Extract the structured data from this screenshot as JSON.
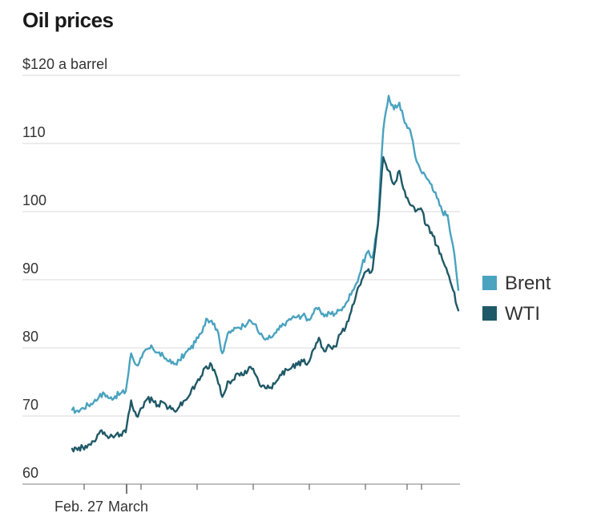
{
  "chart_data": {
    "type": "line",
    "title": "Oil prices",
    "ylabel": "$120 a barrel",
    "ylim": [
      60,
      120
    ],
    "y_ticks": [
      60,
      70,
      80,
      90,
      100,
      110,
      120
    ],
    "y_tick_labels": [
      "60",
      "70",
      "80",
      "90",
      "100",
      "110",
      "$120 a barrel"
    ],
    "x_tick_labels": [
      "Feb. 27",
      "March"
    ],
    "grid": true,
    "legend_position": "right",
    "series": [
      {
        "name": "Brent",
        "color": "#4aa3bf",
        "x": [
          0,
          0.5,
          1,
          1.5,
          2,
          2.5,
          3,
          3.5,
          4,
          4.5,
          5,
          5.5,
          6,
          6.5,
          7,
          7.5,
          8,
          8.5,
          9,
          9.5,
          10,
          10.5,
          11,
          11.5,
          12,
          12.5,
          13,
          13.5,
          14,
          14.5,
          15,
          15.5,
          16,
          16.5,
          17,
          17.5,
          18,
          18.5,
          19,
          19.5,
          20,
          20.5,
          21,
          21.5,
          22,
          22.5,
          23,
          23.5,
          24,
          24.5,
          25,
          25.5,
          26,
          26.5,
          27,
          27.5,
          28,
          28.5,
          29,
          29.5,
          30
        ],
        "values": [
          70.9,
          70.8,
          71.2,
          71.6,
          72.0,
          72.8,
          73.3,
          72.6,
          72.9,
          73.3,
          73.6,
          79.2,
          77.5,
          78.6,
          79.8,
          80.0,
          79.3,
          78.8,
          78.0,
          77.6,
          78.2,
          79.1,
          79.8,
          80.8,
          82.1,
          84.3,
          84.0,
          82.7,
          79.2,
          82.1,
          82.5,
          83.0,
          83.3,
          84.1,
          83.5,
          82.0,
          81.2,
          81.5,
          82.2,
          83.1,
          83.9,
          84.4,
          84.6,
          84.8,
          84.2,
          85.1,
          85.9,
          84.6,
          85.1,
          85.0,
          85.6,
          86.5,
          87.8,
          89.5,
          92.0,
          94.0,
          93.3,
          98.2,
          112.0,
          117.0,
          115.0
        ]
      },
      {
        "name": "WTI",
        "color": "#1f5967",
        "x": [
          0,
          0.5,
          1,
          1.5,
          2,
          2.5,
          3,
          3.5,
          4,
          4.5,
          5,
          5.5,
          6,
          6.5,
          7,
          7.5,
          8,
          8.5,
          9,
          9.5,
          10,
          10.5,
          11,
          11.5,
          12,
          12.5,
          13,
          13.5,
          14,
          14.5,
          15,
          15.5,
          16,
          16.5,
          17,
          17.5,
          18,
          18.5,
          19,
          19.5,
          20,
          20.5,
          21,
          21.5,
          22,
          22.5,
          23,
          23.5,
          24,
          24.5,
          25,
          25.5,
          26,
          26.5,
          27,
          27.5,
          28,
          28.5,
          29,
          29.5,
          30
        ],
        "values": [
          65.2,
          65.0,
          65.4,
          65.8,
          66.3,
          67.4,
          67.6,
          66.9,
          67.1,
          67.3,
          67.6,
          72.3,
          70.0,
          71.2,
          72.5,
          72.3,
          71.6,
          72.0,
          71.2,
          70.8,
          71.4,
          72.3,
          73.2,
          74.6,
          75.8,
          77.3,
          77.5,
          75.6,
          72.8,
          75.1,
          75.3,
          76.2,
          76.0,
          77.2,
          76.3,
          74.5,
          74.1,
          74.2,
          75.0,
          76.0,
          76.8,
          77.2,
          77.5,
          78.0,
          77.8,
          79.8,
          81.5,
          79.5,
          80.3,
          80.2,
          82.0,
          83.0,
          85.3,
          88.0,
          90.0,
          91.3,
          91.5,
          98.0,
          108.0,
          106.0,
          104.0
        ]
      }
    ],
    "tail_series": {
      "Brent": {
        "x": [
          30,
          30.5,
          31,
          31.5,
          32,
          32.5,
          33,
          33.5,
          34,
          34.5,
          35,
          35.5,
          36
        ],
        "values": [
          115,
          116,
          113,
          112,
          108,
          106,
          105,
          104,
          102,
          100,
          99.5,
          95,
          88.5
        ]
      },
      "WTI": {
        "x": [
          30,
          30.5,
          31,
          31.5,
          32,
          32.5,
          33,
          33.5,
          34,
          34.5,
          35,
          35.5,
          36
        ],
        "values": [
          104,
          106,
          103,
          101,
          100,
          100.5,
          98,
          97,
          95,
          93,
          91,
          88.5,
          85.5
        ]
      }
    }
  },
  "legend": {
    "items": [
      {
        "label": "Brent",
        "color": "#4aa3bf"
      },
      {
        "label": "WTI",
        "color": "#1f5967"
      }
    ]
  }
}
